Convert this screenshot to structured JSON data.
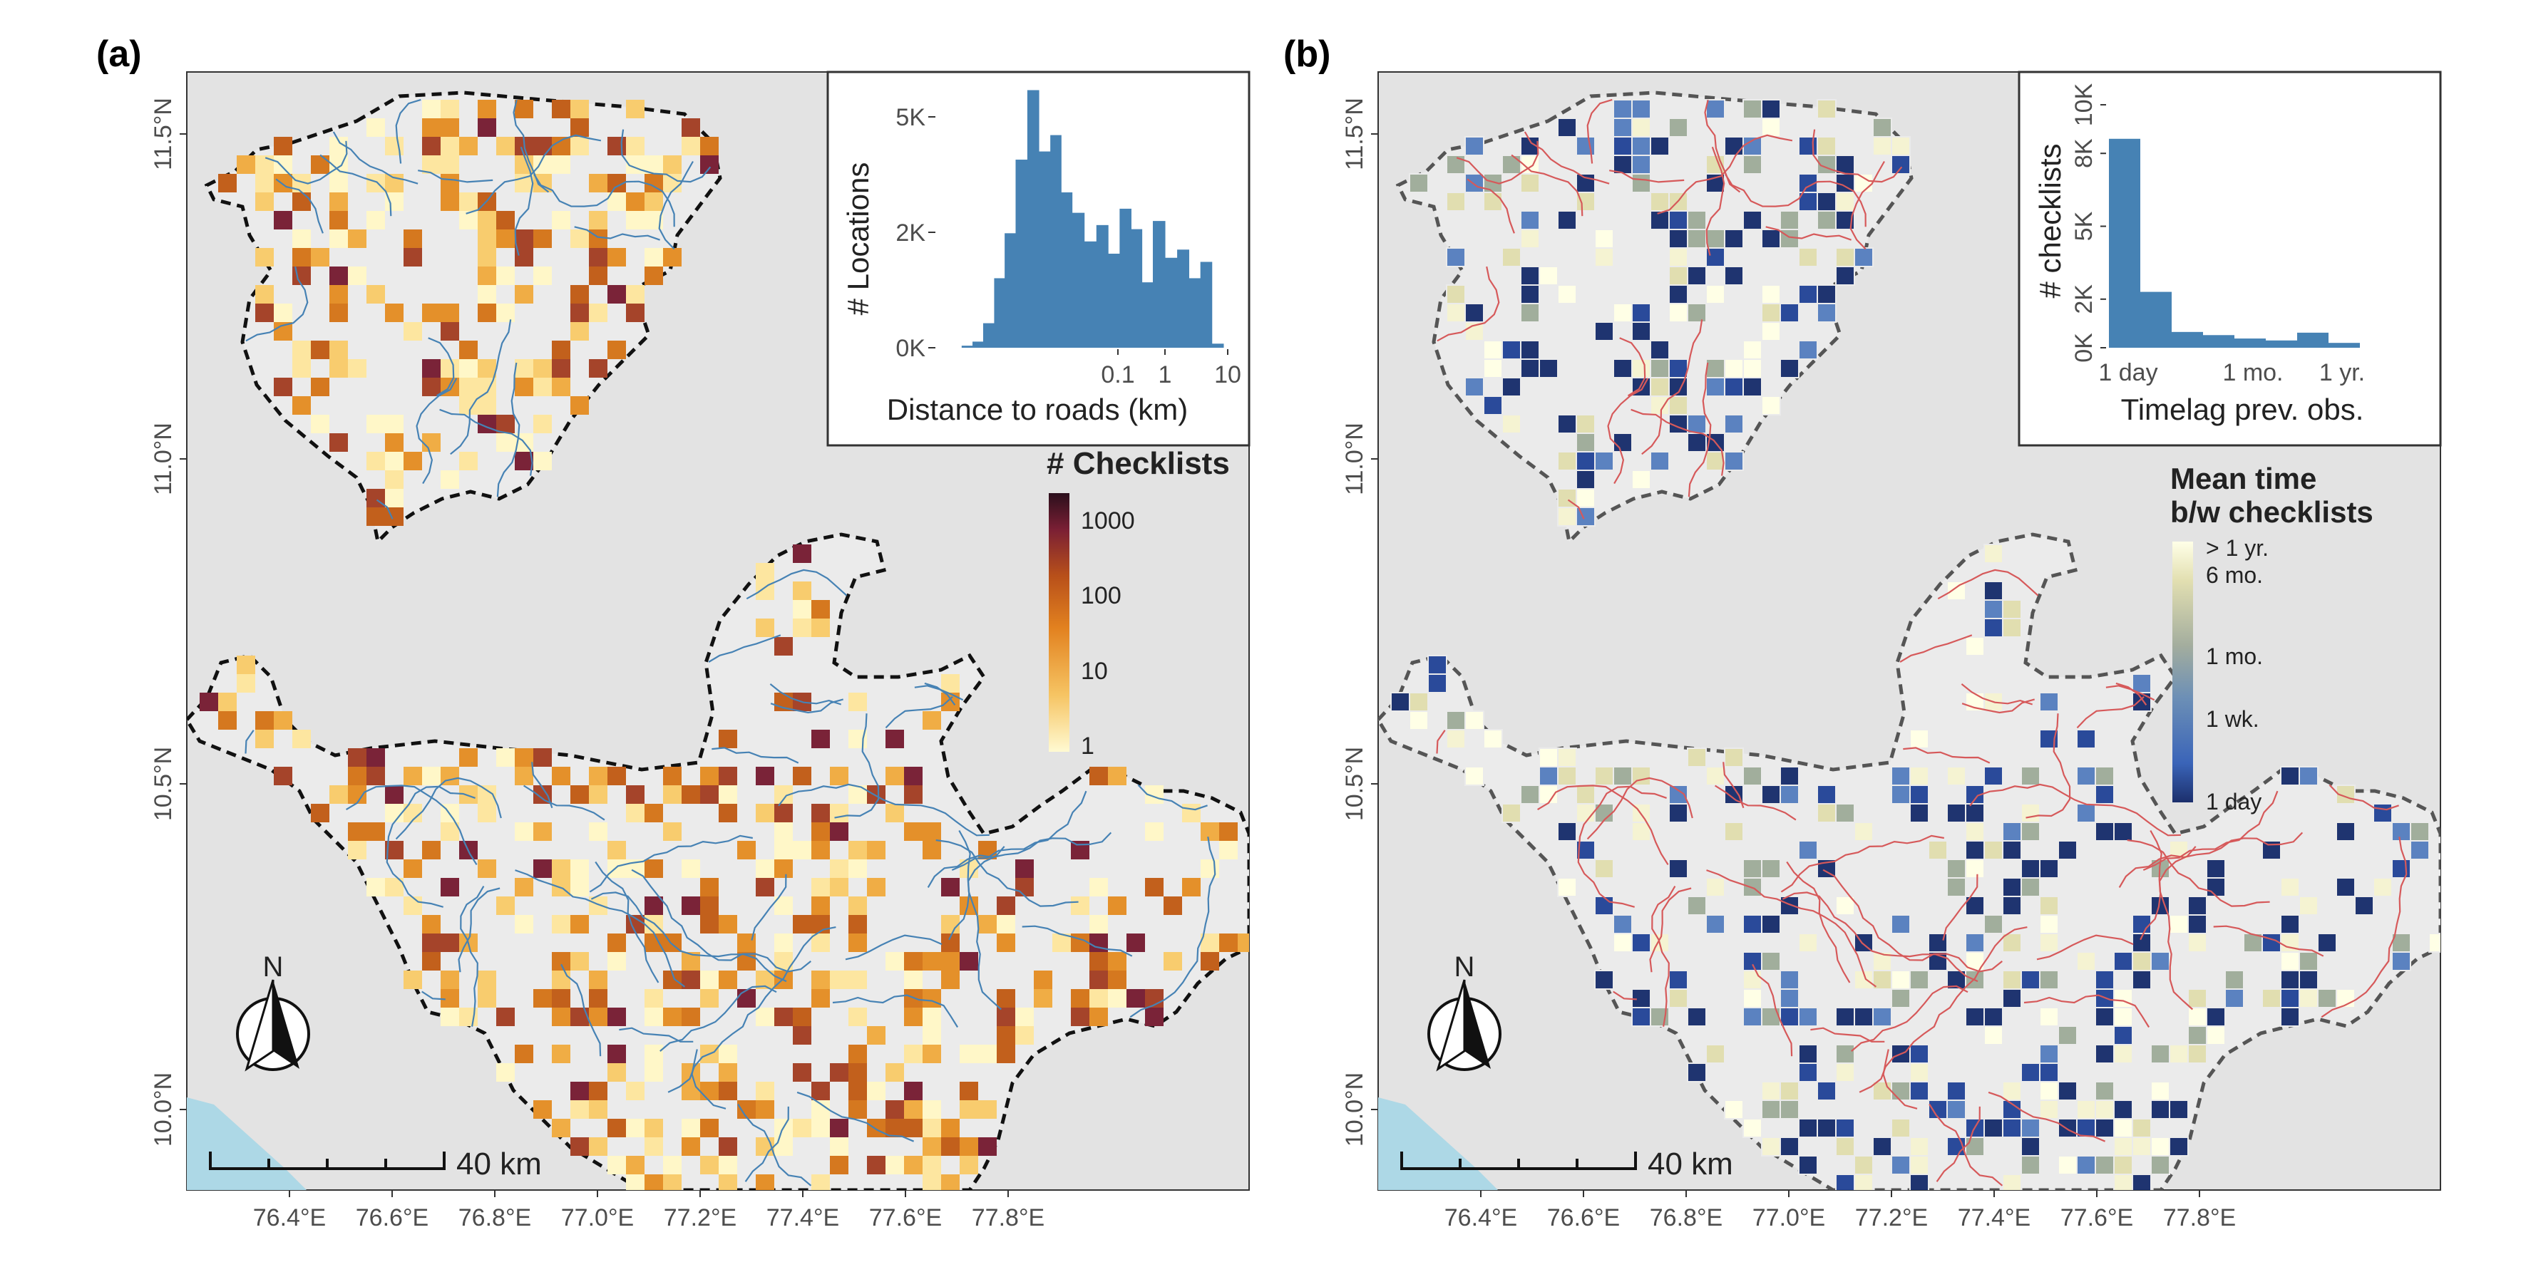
{
  "panels": [
    {
      "label": "(a)",
      "legend_title": "# Checklists",
      "legend_ticks": [
        "1000",
        "100",
        "10",
        "1"
      ],
      "legend_colors": [
        "#fffad2",
        "#f6c463",
        "#e2811f",
        "#b8501a",
        "#7a1f34",
        "#2b0f1c"
      ],
      "inset": {
        "xlabel": "Distance to roads (km)",
        "ylabel": "# Locations",
        "xticks": [
          "0.1",
          "1",
          "10"
        ],
        "yticks": [
          "5K",
          "2K",
          "0K"
        ]
      },
      "road_color": "#4682b4",
      "scale_label": "40 km",
      "north_label": "N"
    },
    {
      "label": "(b)",
      "legend_title_line1": "Mean time",
      "legend_title_line2": "b/w checklists",
      "legend_ticks": [
        "> 1 yr.",
        "6 mo.",
        "1 mo.",
        "1 wk.",
        "1 day"
      ],
      "legend_colors": [
        "#ffffe8",
        "#e2dfb1",
        "#a3ad9e",
        "#6c8fb6",
        "#3a64b8",
        "#1c2f6c"
      ],
      "inset": {
        "xlabel": "Timelag prev. obs.",
        "ylabel": "# checklists",
        "xticks": [
          "1 day",
          "1 mo.",
          "1 yr."
        ],
        "yticks": [
          "10K",
          "8K",
          "5K",
          "2K",
          "0K"
        ]
      },
      "road_color": "#d6595a",
      "scale_label": "40 km",
      "north_label": "N"
    }
  ],
  "axes": {
    "x_ticks": [
      "76.4°E",
      "76.6°E",
      "76.8°E",
      "77.0°E",
      "77.2°E",
      "77.4°E",
      "77.6°E",
      "77.8°E"
    ],
    "y_ticks": [
      "11.5°N",
      "11.0°N",
      "10.5°N",
      "10.0°N"
    ]
  },
  "colors": {
    "panel_bg": "#e3e3e3",
    "region_fill": "#ebebeb",
    "sea": "#add8e6",
    "bar": "#4682b4"
  },
  "chart_data": [
    {
      "type": "bar",
      "xlabel": "Distance to roads (km)",
      "ylabel": "# Locations",
      "xscale": "log",
      "xlim": [
        0.005,
        10
      ],
      "ylim": [
        0,
        6500
      ],
      "x": [
        0.006,
        0.008,
        0.011,
        0.015,
        0.02,
        0.028,
        0.039,
        0.054,
        0.075,
        0.1,
        0.14,
        0.2,
        0.28,
        0.39,
        0.54,
        0.75,
        1.0,
        1.4,
        2.0,
        2.8,
        3.9,
        5.4,
        7.5
      ],
      "values": [
        50,
        150,
        600,
        1700,
        2800,
        4600,
        6300,
        4800,
        5200,
        3800,
        3300,
        2600,
        3000,
        2300,
        3400,
        2900,
        1600,
        3100,
        2200,
        2400,
        1700,
        2100,
        100
      ]
    },
    {
      "type": "bar",
      "xlabel": "Timelag prev. obs.",
      "ylabel": "# checklists",
      "categories": [
        "1 day",
        "",
        "",
        "1 mo.",
        "",
        "",
        "1 yr.",
        ""
      ],
      "values": [
        8600,
        2300,
        650,
        520,
        380,
        300,
        620,
        200
      ],
      "ylim": [
        0,
        10500
      ]
    }
  ]
}
